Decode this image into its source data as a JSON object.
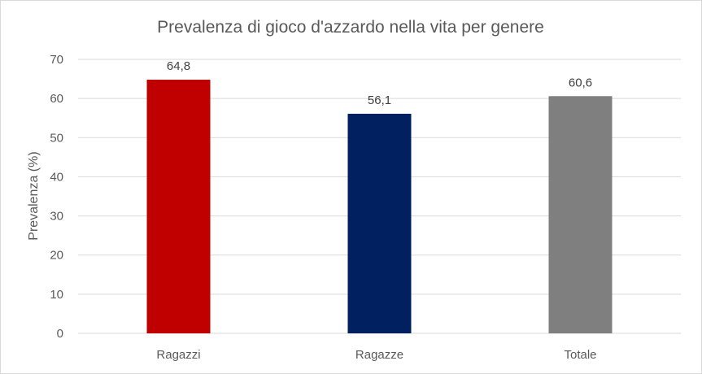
{
  "chart_data": {
    "type": "bar",
    "title": "Prevalenza di gioco d'azzardo nella vita per genere",
    "xlabel": "",
    "ylabel": "Prevalenza (%)",
    "categories": [
      "Ragazzi",
      "Ragazze",
      "Totale"
    ],
    "values": [
      64.8,
      56.1,
      60.6
    ],
    "value_labels": [
      "64,8",
      "56,1",
      "60,6"
    ],
    "colors": [
      "#c00000",
      "#002060",
      "#7f7f7f"
    ],
    "ylim": [
      0,
      70
    ],
    "yticks": [
      0,
      10,
      20,
      30,
      40,
      50,
      60,
      70
    ],
    "grid": true,
    "legend": "none"
  }
}
